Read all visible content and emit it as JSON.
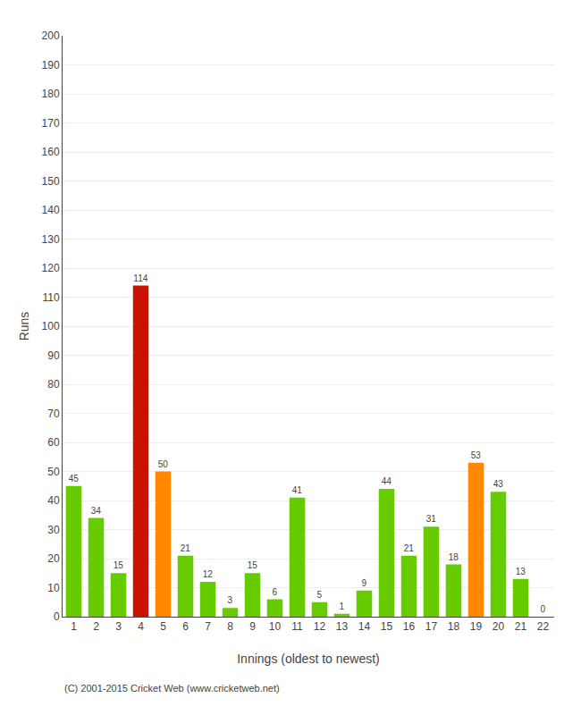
{
  "chart_data": {
    "type": "bar",
    "categories": [
      "1",
      "2",
      "3",
      "4",
      "5",
      "6",
      "7",
      "8",
      "9",
      "10",
      "11",
      "12",
      "13",
      "14",
      "15",
      "16",
      "17",
      "18",
      "19",
      "20",
      "21",
      "22"
    ],
    "values": [
      45,
      34,
      15,
      114,
      50,
      21,
      12,
      3,
      15,
      6,
      41,
      5,
      1,
      9,
      44,
      21,
      31,
      18,
      53,
      43,
      13,
      0
    ],
    "colors": [
      "#66cc00",
      "#66cc00",
      "#66cc00",
      "#cc1100",
      "#ff8800",
      "#66cc00",
      "#66cc00",
      "#66cc00",
      "#66cc00",
      "#66cc00",
      "#66cc00",
      "#66cc00",
      "#66cc00",
      "#66cc00",
      "#66cc00",
      "#66cc00",
      "#66cc00",
      "#66cc00",
      "#ff8800",
      "#66cc00",
      "#66cc00",
      "#66cc00"
    ],
    "xlabel": "Innings (oldest to newest)",
    "ylabel": "Runs",
    "ylim": [
      0,
      200
    ],
    "yticks": [
      0,
      10,
      20,
      30,
      40,
      50,
      60,
      70,
      80,
      90,
      100,
      110,
      120,
      130,
      140,
      150,
      160,
      170,
      180,
      190,
      200
    ],
    "grid": true,
    "data_labels": true,
    "annotations": [
      "(C) 2001-2015 Cricket Web (www.cricketweb.net)"
    ]
  }
}
